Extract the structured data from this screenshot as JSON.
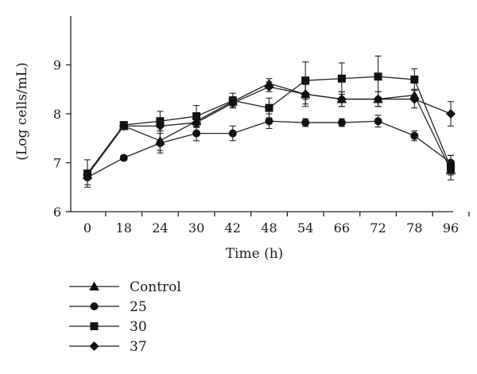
{
  "chart_data": {
    "type": "line",
    "xlabel": "Time (h)",
    "ylabel": "(Log cells/mL)",
    "x": [
      0,
      18,
      24,
      30,
      42,
      48,
      54,
      66,
      72,
      78,
      96
    ],
    "x_tick_labels": [
      "0",
      "18",
      "24",
      "30",
      "42",
      "48",
      "54",
      "66",
      "72",
      "78",
      "96"
    ],
    "x_scale": "categorical",
    "ylim": [
      6,
      10
    ],
    "y_ticks": [
      6,
      7,
      8,
      9
    ],
    "y_tick_labels": [
      "6",
      "7",
      "8",
      "9"
    ],
    "grid": false,
    "legend_position": "bottom-left",
    "series": [
      {
        "name": "Control",
        "marker": "triangle",
        "values": [
          6.75,
          7.75,
          7.45,
          7.85,
          8.25,
          8.62,
          8.4,
          8.3,
          8.3,
          8.38,
          6.85
        ],
        "errors": [
          0.08,
          0.05,
          0.2,
          0.1,
          0.1,
          0.1,
          0.2,
          0.15,
          0.15,
          0.12,
          0.1
        ]
      },
      {
        "name": "25",
        "marker": "circle",
        "values": [
          6.7,
          7.1,
          7.4,
          7.6,
          7.6,
          7.85,
          7.82,
          7.82,
          7.85,
          7.55,
          7.0
        ],
        "errors": [
          0.15,
          0.05,
          0.2,
          0.15,
          0.15,
          0.15,
          0.08,
          0.08,
          0.12,
          0.1,
          0.15
        ]
      },
      {
        "name": "30",
        "marker": "square",
        "values": [
          6.78,
          7.77,
          7.85,
          7.95,
          8.27,
          8.12,
          8.68,
          8.72,
          8.76,
          8.7,
          6.9
        ],
        "errors": [
          0.28,
          0.05,
          0.2,
          0.22,
          0.15,
          0.2,
          0.38,
          0.32,
          0.42,
          0.22,
          0.25
        ]
      },
      {
        "name": "37",
        "marker": "diamond",
        "values": [
          6.75,
          7.75,
          7.75,
          7.82,
          8.22,
          8.55,
          8.4,
          8.3,
          8.3,
          8.3,
          8.0
        ],
        "errors": [
          0.08,
          0.05,
          0.1,
          0.1,
          0.1,
          0.1,
          0.25,
          0.15,
          0.15,
          0.18,
          0.25
        ]
      }
    ]
  }
}
